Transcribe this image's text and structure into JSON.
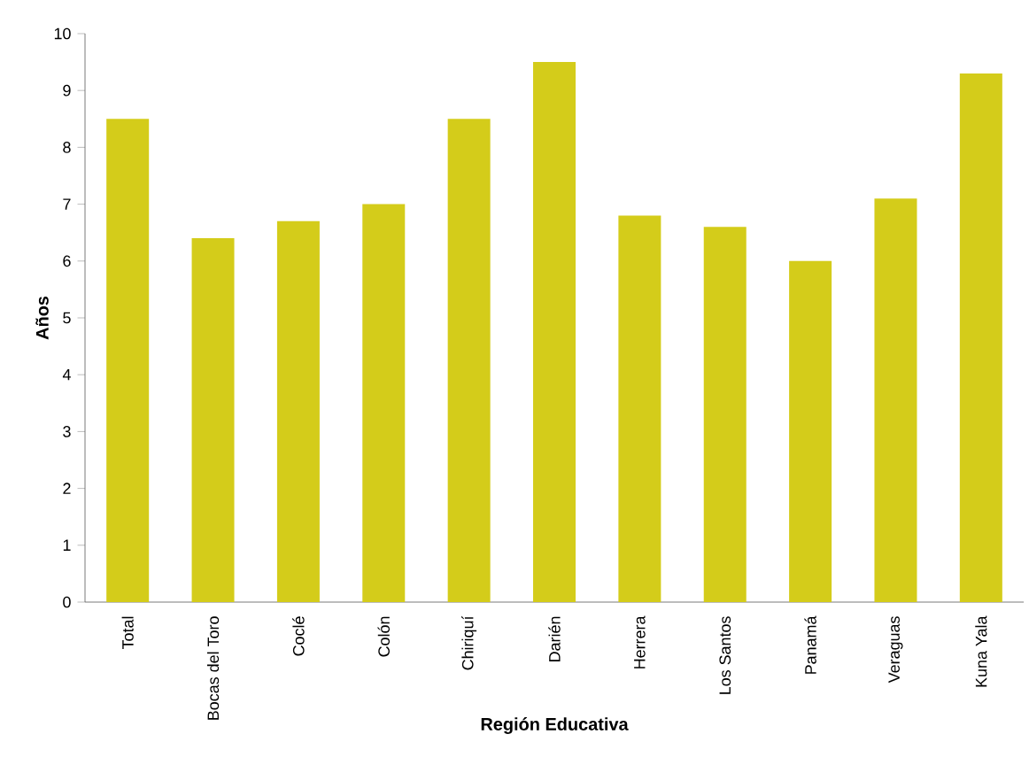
{
  "chart_data": {
    "type": "bar",
    "xlabel": "Región Educativa",
    "ylabel": "Años",
    "categories": [
      "Total",
      "Bocas del Toro",
      "Coclé",
      "Colón",
      "Chiriquí",
      "Darién",
      "Herrera",
      "Los Santos",
      "Panamá",
      "Veraguas",
      "Kuna Yala"
    ],
    "values": [
      8.5,
      6.4,
      6.7,
      7.0,
      8.5,
      9.5,
      6.8,
      6.6,
      6.0,
      7.1,
      9.3
    ],
    "color": "#d4cc1a",
    "ylim": [
      0,
      10
    ],
    "yticks": [
      0,
      1,
      2,
      3,
      4,
      5,
      6,
      7,
      8,
      9,
      10
    ]
  }
}
